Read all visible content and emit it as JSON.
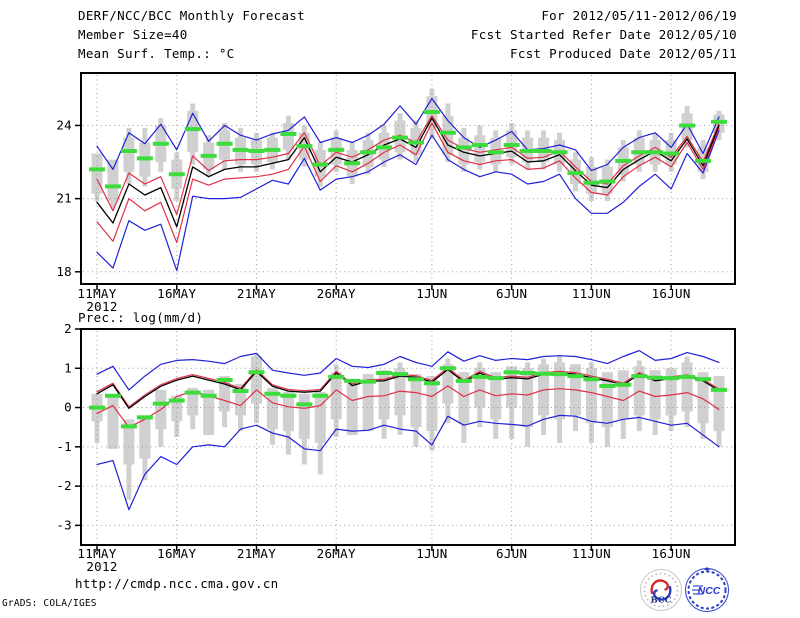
{
  "header": {
    "left_lines": [
      "DERF/NCC/BCC Monthly Forecast",
      "Member Size=40"
    ],
    "right_lines": [
      "For 2012/05/11-2012/06/19",
      "Fcst Started Refer Date 2012/05/10",
      "Fcst Produced Date 2012/05/11"
    ]
  },
  "footer": {
    "url": "http://cmdp.ncc.cma.gov.cn",
    "credit": "GrADS: COLA/IGES",
    "logo_left_text": "BCC",
    "logo_right_text": "NCC"
  },
  "colors": {
    "ensemble_max_min": "#2020d8",
    "quartile_lines": "#e03048",
    "ensemble_mean": "#000000",
    "obs_dash": "#3cdc3c",
    "range_bar": "#d0d0d0",
    "grid": "#9c9c9c",
    "axis": "#000000"
  },
  "chart_data": [
    {
      "type": "line",
      "name": "temperature",
      "title": "Mean Surf. Temp.: °C",
      "n_points": 40,
      "x_tick_labels": [
        "11MAY",
        "16MAY",
        "21MAY",
        "26MAY",
        "1JUN",
        "6JUN",
        "11JUN",
        "16JUN"
      ],
      "x_tick_days": [
        0,
        5,
        10,
        15,
        21,
        26,
        31,
        36
      ],
      "x_year_label": "2012",
      "y_ticks": [
        18,
        21,
        24
      ],
      "y_range": [
        17.5,
        26.15
      ],
      "grid": true,
      "legend": "none",
      "series": [
        {
          "name": "ensemble-max",
          "color": "#2020d8",
          "width": 1.2,
          "values": [
            23.15,
            22.2,
            23.7,
            23.25,
            24.05,
            23.0,
            24.5,
            23.35,
            24.0,
            23.6,
            23.4,
            23.65,
            23.8,
            24.35,
            23.3,
            23.5,
            23.3,
            23.6,
            24.05,
            24.8,
            24.05,
            25.1,
            24.2,
            23.5,
            23.1,
            23.4,
            23.75,
            23.0,
            23.05,
            23.2,
            23.0,
            22.15,
            22.4,
            23.1,
            23.5,
            23.7,
            23.1,
            24.05,
            22.85,
            24.35
          ]
        },
        {
          "name": "ensemble-min",
          "color": "#2020d8",
          "width": 1.2,
          "values": [
            18.8,
            18.15,
            20.1,
            19.7,
            19.95,
            18.05,
            21.1,
            21.0,
            21.0,
            21.05,
            21.4,
            21.75,
            21.6,
            22.65,
            21.35,
            21.8,
            21.9,
            22.1,
            22.5,
            22.8,
            22.4,
            23.6,
            22.6,
            22.2,
            21.9,
            22.1,
            22.0,
            21.6,
            21.7,
            22.0,
            21.0,
            20.4,
            20.4,
            20.85,
            21.5,
            22.0,
            21.4,
            22.85,
            22.05,
            23.8
          ]
        },
        {
          "name": "upper-quartile",
          "color": "#e03048",
          "width": 1.2,
          "values": [
            21.8,
            20.5,
            22.05,
            21.6,
            21.9,
            20.35,
            22.75,
            22.15,
            22.55,
            22.6,
            22.6,
            22.7,
            22.85,
            23.7,
            22.35,
            22.9,
            22.7,
            23.0,
            23.4,
            23.6,
            23.3,
            24.4,
            23.4,
            23.05,
            22.9,
            23.0,
            23.1,
            22.65,
            22.7,
            22.95,
            22.3,
            21.7,
            21.6,
            22.35,
            22.75,
            23.1,
            22.7,
            23.55,
            22.5,
            24.1
          ]
        },
        {
          "name": "lower-quartile",
          "color": "#e03048",
          "width": 1.2,
          "values": [
            20.05,
            19.25,
            21.0,
            20.5,
            20.85,
            19.2,
            21.8,
            21.55,
            21.8,
            21.85,
            21.9,
            22.0,
            22.2,
            23.15,
            21.7,
            22.35,
            22.1,
            22.45,
            22.9,
            23.2,
            22.8,
            24.1,
            22.9,
            22.55,
            22.4,
            22.55,
            22.6,
            22.2,
            22.25,
            22.55,
            21.85,
            21.25,
            21.15,
            21.9,
            22.35,
            22.7,
            22.3,
            23.3,
            22.2,
            23.9
          ]
        },
        {
          "name": "ensemble-mean",
          "color": "#000000",
          "width": 1.3,
          "values": [
            20.85,
            20.0,
            21.6,
            21.15,
            21.45,
            19.85,
            22.3,
            21.9,
            22.2,
            22.3,
            22.3,
            22.45,
            22.6,
            23.5,
            22.1,
            22.7,
            22.5,
            22.8,
            23.2,
            23.45,
            23.1,
            24.3,
            23.2,
            22.9,
            22.75,
            22.85,
            22.95,
            22.5,
            22.55,
            22.8,
            22.15,
            21.55,
            21.45,
            22.2,
            22.6,
            22.95,
            22.55,
            23.45,
            22.35,
            24.0
          ]
        }
      ],
      "obs_dash": {
        "name": "green-dash-reference",
        "color": "#3cdc3c",
        "values": [
          22.2,
          21.5,
          22.95,
          22.65,
          23.25,
          22.0,
          23.85,
          22.75,
          23.25,
          23.0,
          22.95,
          23.0,
          23.65,
          23.15,
          22.4,
          23.0,
          22.45,
          22.9,
          23.1,
          23.5,
          23.3,
          24.55,
          23.7,
          23.1,
          23.2,
          22.9,
          23.2,
          22.95,
          22.95,
          22.9,
          22.05,
          21.65,
          21.7,
          22.55,
          22.9,
          22.9,
          22.85,
          24.0,
          22.55,
          24.15
        ]
      },
      "range_bars": {
        "name": "gray-range-bars",
        "wide_top": [
          22.85,
          22.6,
          23.5,
          23.3,
          24.0,
          22.6,
          24.6,
          23.3,
          23.8,
          23.5,
          23.4,
          23.5,
          24.1,
          23.7,
          23.0,
          23.5,
          23.0,
          23.4,
          23.7,
          24.2,
          23.9,
          25.2,
          24.4,
          23.5,
          23.6,
          23.5,
          23.8,
          23.5,
          23.5,
          23.4,
          22.6,
          22.3,
          22.3,
          23.1,
          23.5,
          23.4,
          23.4,
          24.5,
          23.1,
          24.45
        ],
        "wide_bottom": [
          21.2,
          20.9,
          22.1,
          21.9,
          22.5,
          21.4,
          22.9,
          22.2,
          22.6,
          22.4,
          22.4,
          22.5,
          23.0,
          22.6,
          21.9,
          22.4,
          21.9,
          22.3,
          22.6,
          22.9,
          22.8,
          23.9,
          22.8,
          22.4,
          22.5,
          22.4,
          22.7,
          22.5,
          22.5,
          22.4,
          21.6,
          21.2,
          21.2,
          22.0,
          22.4,
          22.4,
          22.4,
          23.4,
          22.1,
          23.7
        ],
        "narrow_top": [
          22.85,
          22.6,
          23.9,
          23.9,
          24.3,
          22.9,
          24.9,
          23.6,
          24.1,
          23.9,
          23.7,
          23.7,
          24.4,
          24.0,
          23.3,
          23.8,
          23.3,
          23.7,
          24.0,
          24.5,
          24.2,
          25.5,
          24.9,
          23.9,
          24.0,
          23.8,
          24.1,
          23.8,
          23.8,
          23.7,
          22.9,
          22.7,
          22.6,
          23.4,
          23.8,
          23.7,
          23.7,
          24.8,
          23.4,
          24.6
        ],
        "narrow_bottom": [
          20.9,
          20.6,
          21.6,
          21.5,
          22.1,
          20.9,
          22.4,
          21.9,
          22.2,
          22.1,
          22.1,
          22.2,
          22.6,
          22.3,
          21.5,
          22.1,
          21.6,
          22.0,
          22.3,
          22.6,
          22.5,
          23.5,
          22.5,
          22.1,
          22.2,
          22.1,
          22.4,
          22.2,
          22.2,
          22.1,
          21.3,
          20.9,
          20.9,
          21.7,
          22.1,
          22.1,
          22.1,
          23.1,
          21.8,
          23.4
        ]
      }
    },
    {
      "type": "line",
      "name": "precipitation",
      "title": "Prec.: log(mm/d)",
      "n_points": 40,
      "x_tick_labels": [
        "11MAY",
        "16MAY",
        "21MAY",
        "26MAY",
        "1JUN",
        "6JUN",
        "11JUN",
        "16JUN"
      ],
      "x_tick_days": [
        0,
        5,
        10,
        15,
        21,
        26,
        31,
        36
      ],
      "x_year_label": "2012",
      "y_ticks": [
        -3,
        -2,
        -1,
        0,
        1,
        2
      ],
      "y_range": [
        -3.5,
        2.0
      ],
      "grid": true,
      "legend": "none",
      "series": [
        {
          "name": "ensemble-max",
          "color": "#2020d8",
          "width": 1.2,
          "values": [
            0.85,
            1.05,
            0.45,
            0.8,
            1.1,
            1.2,
            1.22,
            1.18,
            1.12,
            1.3,
            1.38,
            0.95,
            0.88,
            0.82,
            0.88,
            1.25,
            1.05,
            1.02,
            1.1,
            1.3,
            1.15,
            1.05,
            1.42,
            1.18,
            1.32,
            1.2,
            1.25,
            1.22,
            1.3,
            1.32,
            1.3,
            1.22,
            1.12,
            1.3,
            1.45,
            1.2,
            1.25,
            1.4,
            1.3,
            1.15
          ]
        },
        {
          "name": "ensemble-min",
          "color": "#2020d8",
          "width": 1.2,
          "values": [
            -1.45,
            -1.35,
            -2.6,
            -1.7,
            -1.25,
            -1.45,
            -1.0,
            -0.95,
            -1.0,
            -0.55,
            -0.45,
            -0.65,
            -0.75,
            -1.05,
            -1.1,
            -0.55,
            -0.6,
            -0.58,
            -0.45,
            -0.55,
            -0.6,
            -0.95,
            -0.22,
            -0.45,
            -0.35,
            -0.4,
            -0.43,
            -0.47,
            -0.3,
            -0.2,
            -0.22,
            -0.35,
            -0.4,
            -0.3,
            -0.25,
            -0.35,
            -0.45,
            -0.4,
            -0.7,
            -1.0
          ]
        },
        {
          "name": "upper-quartile",
          "color": "#e03048",
          "width": 1.2,
          "values": [
            0.4,
            0.62,
            0.02,
            0.32,
            0.58,
            0.74,
            0.84,
            0.74,
            0.64,
            0.49,
            0.96,
            0.58,
            0.46,
            0.43,
            0.46,
            0.92,
            0.6,
            0.71,
            0.72,
            0.84,
            0.81,
            0.69,
            1.01,
            0.69,
            0.92,
            0.76,
            0.8,
            0.77,
            0.89,
            0.92,
            0.89,
            0.8,
            0.72,
            0.62,
            0.89,
            0.72,
            0.78,
            0.83,
            0.72,
            0.47
          ]
        },
        {
          "name": "lower-quartile",
          "color": "#e03048",
          "width": 1.2,
          "values": [
            -0.15,
            0.05,
            -0.5,
            -0.3,
            -0.05,
            0.28,
            0.42,
            0.3,
            0.18,
            0.05,
            0.45,
            0.12,
            0.02,
            -0.02,
            0.05,
            0.45,
            0.18,
            0.28,
            0.3,
            0.42,
            0.38,
            0.28,
            0.55,
            0.28,
            0.45,
            0.3,
            0.35,
            0.32,
            0.45,
            0.48,
            0.45,
            0.38,
            0.28,
            0.18,
            0.42,
            0.28,
            0.32,
            0.38,
            0.22,
            -0.05
          ]
        },
        {
          "name": "ensemble-mean",
          "color": "#000000",
          "width": 1.3,
          "values": [
            0.35,
            0.58,
            -0.02,
            0.28,
            0.54,
            0.7,
            0.8,
            0.7,
            0.6,
            0.45,
            0.92,
            0.54,
            0.42,
            0.39,
            0.42,
            0.88,
            0.56,
            0.67,
            0.68,
            0.8,
            0.77,
            0.65,
            0.97,
            0.65,
            0.88,
            0.72,
            0.76,
            0.73,
            0.85,
            0.88,
            0.85,
            0.76,
            0.68,
            0.58,
            0.85,
            0.68,
            0.74,
            0.79,
            0.68,
            0.43
          ]
        }
      ],
      "obs_dash": {
        "name": "green-dash-reference",
        "color": "#3cdc3c",
        "values": [
          0.0,
          0.3,
          -0.48,
          -0.25,
          0.1,
          0.18,
          0.38,
          0.3,
          0.7,
          0.42,
          0.9,
          0.35,
          0.3,
          0.08,
          0.3,
          0.78,
          0.68,
          0.66,
          0.88,
          0.85,
          0.72,
          0.62,
          1.0,
          0.68,
          0.78,
          0.75,
          0.9,
          0.88,
          0.86,
          0.85,
          0.8,
          0.72,
          0.55,
          0.58,
          0.8,
          0.76,
          0.75,
          0.78,
          0.72,
          0.45
        ]
      },
      "range_bars": {
        "name": "gray-range-bars",
        "wide_top": [
          0.35,
          0.25,
          -0.3,
          -0.2,
          0.45,
          0.3,
          0.5,
          0.45,
          0.8,
          0.6,
          1.3,
          0.5,
          0.4,
          0.35,
          0.4,
          0.9,
          0.6,
          0.85,
          0.95,
          1.0,
          0.85,
          0.8,
          1.1,
          0.9,
          1.0,
          0.9,
          1.05,
          1.0,
          1.1,
          1.15,
          1.1,
          1.0,
          0.9,
          0.95,
          1.05,
          0.95,
          1.0,
          1.15,
          0.9,
          0.8
        ],
        "wide_bottom": [
          -0.35,
          -1.05,
          -1.45,
          -1.3,
          -0.55,
          -0.35,
          -0.2,
          -0.7,
          -0.1,
          -0.2,
          0.1,
          -0.55,
          -0.6,
          -0.8,
          -0.9,
          -0.3,
          -0.7,
          -0.6,
          -0.3,
          -0.2,
          -0.5,
          -0.6,
          0.1,
          -0.4,
          0.0,
          -0.3,
          0.0,
          -0.5,
          -0.2,
          -0.3,
          -0.2,
          -0.4,
          -0.5,
          -0.3,
          -0.2,
          -0.3,
          -0.2,
          -0.1,
          -0.4,
          -0.6
        ],
        "narrow_top": [
          0.35,
          0.25,
          -0.3,
          -0.2,
          0.45,
          0.3,
          0.5,
          0.45,
          0.8,
          0.6,
          1.35,
          0.5,
          0.4,
          0.35,
          0.4,
          1.1,
          0.6,
          0.85,
          0.95,
          1.15,
          0.85,
          0.8,
          1.25,
          0.9,
          1.15,
          0.9,
          1.05,
          1.15,
          1.25,
          1.3,
          1.1,
          1.15,
          0.9,
          0.95,
          1.2,
          0.95,
          1.0,
          1.3,
          0.9,
          0.8
        ],
        "narrow_bottom": [
          -0.9,
          -1.05,
          -2.35,
          -1.85,
          -1.0,
          -0.75,
          -0.55,
          -0.7,
          -0.5,
          -0.6,
          -0.4,
          -0.95,
          -1.2,
          -1.45,
          -1.7,
          -0.75,
          -0.7,
          -0.6,
          -0.8,
          -0.7,
          -1.0,
          -1.1,
          -0.4,
          -0.9,
          -0.5,
          -0.8,
          -0.8,
          -1.0,
          -0.7,
          -0.9,
          -0.6,
          -0.9,
          -1.0,
          -0.8,
          -0.6,
          -0.7,
          -0.6,
          -0.5,
          -0.8,
          -1.0
        ]
      }
    }
  ]
}
